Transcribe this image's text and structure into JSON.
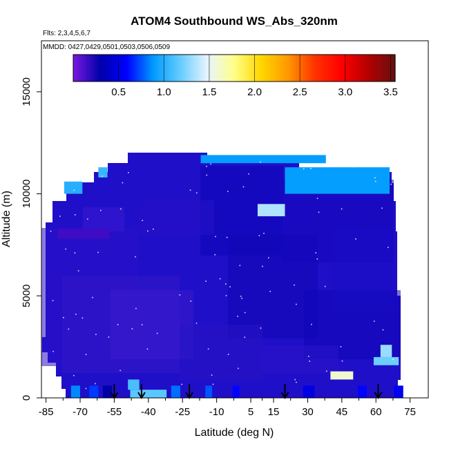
{
  "chart_data": {
    "type": "heatmap",
    "title": "ATOM4 Southbound WS_Abs_320nm",
    "flights_label": "Flts: 2,3,4,5,6,7",
    "mmdd_label": "MMDD: 0427,0429,0501,0503,0506,0509",
    "xlabel": "Latitude (deg N)",
    "ylabel": "Altitude (m)",
    "xlim": [
      -87,
      83
    ],
    "ylim": [
      0,
      17500
    ],
    "x_ticks": [
      -85,
      -70,
      -55,
      -40,
      -25,
      -10,
      5,
      15,
      30,
      45,
      60,
      75
    ],
    "x_tick_labels": [
      "-85",
      "-70",
      "-55",
      "-40",
      "-25",
      "-10",
      "5",
      "15",
      "30",
      "45",
      "60",
      "75"
    ],
    "y_ticks": [
      0,
      5000,
      10000,
      15000
    ],
    "y_tick_labels": [
      "0",
      "5000",
      "10000",
      "15000"
    ],
    "colorbar": {
      "min": 0.0,
      "max": 3.55,
      "ticks": [
        0.5,
        1.0,
        1.5,
        2.0,
        2.5,
        3.0,
        3.5
      ],
      "tick_labels": [
        "0.5",
        "1.0",
        "1.5",
        "2.0",
        "2.5",
        "3.0",
        "3.5"
      ],
      "colors": [
        "#7b18e0",
        "#0000a8",
        "#0000ff",
        "#009cff",
        "#66ccff",
        "#e8f4ff",
        "#ffff88",
        "#ffd700",
        "#ff9900",
        "#ff3300",
        "#ff0000",
        "#b30000",
        "#661010"
      ]
    },
    "profile_latitudes": [
      -55,
      -43,
      -22,
      20,
      61
    ],
    "column_top_altitudes": [
      {
        "lat": -83,
        "top": 3200
      },
      {
        "lat": -82,
        "top": 8900
      },
      {
        "lat": -77,
        "top": 9900
      },
      {
        "lat": -70,
        "top": 10700
      },
      {
        "lat": -58,
        "top": 11900
      },
      {
        "lat": -45,
        "top": 12400
      },
      {
        "lat": -21,
        "top": 12400
      },
      {
        "lat": -17,
        "top": 11900
      },
      {
        "lat": 38,
        "top": 11900
      },
      {
        "lat": 40,
        "top": 11500
      },
      {
        "lat": 66,
        "top": 11500
      },
      {
        "lat": 70,
        "top": 10000
      },
      {
        "lat": 73,
        "top": 8500
      },
      {
        "lat": 75,
        "top": 5000
      },
      {
        "lat": 75,
        "top": 800
      }
    ],
    "features": [
      {
        "lat_min": -80,
        "lat_max": -57,
        "alt_min": 7800,
        "alt_max": 8300,
        "value": 0.15
      },
      {
        "lat_min": -77,
        "lat_max": -69,
        "alt_min": 10000,
        "alt_max": 10600,
        "value": 1.0
      },
      {
        "lat_min": -62,
        "lat_max": -58,
        "alt_min": 10800,
        "alt_max": 11300,
        "value": 1.05
      },
      {
        "lat_min": -17,
        "lat_max": 38,
        "alt_min": 11500,
        "alt_max": 11900,
        "value": 0.9
      },
      {
        "lat_min": 8,
        "lat_max": 20,
        "alt_min": 8900,
        "alt_max": 9500,
        "value": 1.35
      },
      {
        "lat_min": 20,
        "lat_max": 66,
        "alt_min": 10000,
        "alt_max": 11300,
        "value": 0.9
      },
      {
        "lat_min": 40,
        "lat_max": 50,
        "alt_min": 900,
        "alt_max": 1300,
        "value": 1.6
      },
      {
        "lat_min": 59,
        "lat_max": 70,
        "alt_min": 1600,
        "alt_max": 2000,
        "value": 1.2
      },
      {
        "lat_min": 62,
        "lat_max": 67,
        "alt_min": 2000,
        "alt_max": 2600,
        "value": 1.3
      },
      {
        "lat_min": -48,
        "lat_max": -32,
        "alt_min": 0,
        "alt_max": 400,
        "value": 1.15
      },
      {
        "lat_min": -49,
        "lat_max": -44,
        "alt_min": 400,
        "alt_max": 900,
        "value": 1.1
      }
    ]
  }
}
